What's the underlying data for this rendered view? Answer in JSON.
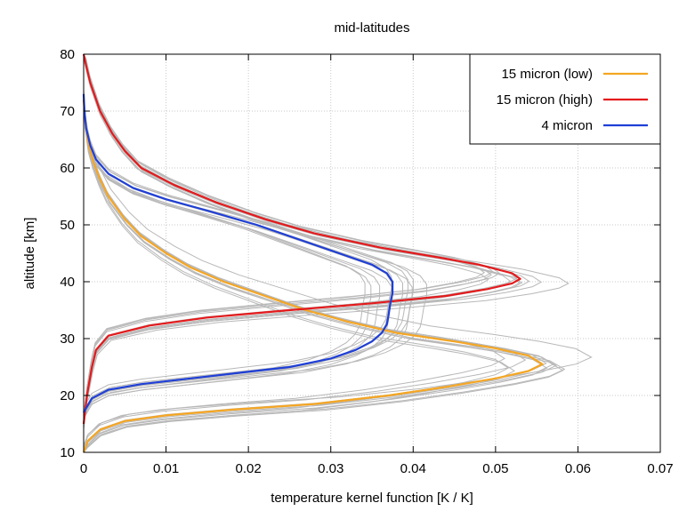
{
  "chart_data": {
    "type": "line",
    "title": "mid-latitudes",
    "xlabel": "temperature kernel function [K / K]",
    "ylabel": "altitude [km]",
    "xlim": [
      0,
      0.07
    ],
    "ylim": [
      10,
      80
    ],
    "xticks": [
      "0",
      "0.01",
      "0.02",
      "0.03",
      "0.04",
      "0.05",
      "0.06",
      "0.07"
    ],
    "yticks": [
      "10",
      "20",
      "30",
      "40",
      "50",
      "60",
      "70",
      "80"
    ],
    "grid": true,
    "legend_position": "top-right",
    "series": [
      {
        "name": "15 micron (low)",
        "color": "#f5a623",
        "points": [
          [
            0.0,
            10
          ],
          [
            0.0005,
            12
          ],
          [
            0.002,
            14
          ],
          [
            0.005,
            15.5
          ],
          [
            0.01,
            16.5
          ],
          [
            0.018,
            17.5
          ],
          [
            0.028,
            18.5
          ],
          [
            0.037,
            20
          ],
          [
            0.044,
            21.5
          ],
          [
            0.05,
            23
          ],
          [
            0.054,
            24.3
          ],
          [
            0.0557,
            25.5
          ],
          [
            0.054,
            27
          ],
          [
            0.05,
            28.3
          ],
          [
            0.045,
            29.5
          ],
          [
            0.038,
            31
          ],
          [
            0.032,
            33
          ],
          [
            0.027,
            35
          ],
          [
            0.022,
            37.5
          ],
          [
            0.017,
            40
          ],
          [
            0.013,
            42.5
          ],
          [
            0.01,
            45
          ],
          [
            0.007,
            48
          ],
          [
            0.005,
            51
          ],
          [
            0.003,
            55
          ],
          [
            0.002,
            58
          ],
          [
            0.0012,
            61
          ],
          [
            0.0006,
            64
          ],
          [
            0.0002,
            68
          ],
          [
            0.0,
            72
          ]
        ]
      },
      {
        "name": "15 micron (high)",
        "color": "#e41a1c",
        "points": [
          [
            0.0,
            15
          ],
          [
            0.0004,
            20
          ],
          [
            0.001,
            25
          ],
          [
            0.0015,
            28
          ],
          [
            0.003,
            30.5
          ],
          [
            0.008,
            32.3
          ],
          [
            0.015,
            33.7
          ],
          [
            0.025,
            35
          ],
          [
            0.035,
            36.2
          ],
          [
            0.044,
            37.5
          ],
          [
            0.049,
            38.7
          ],
          [
            0.052,
            39.7
          ],
          [
            0.053,
            40.5
          ],
          [
            0.052,
            41.5
          ],
          [
            0.048,
            43
          ],
          [
            0.043,
            44.3
          ],
          [
            0.036,
            46
          ],
          [
            0.028,
            48.5
          ],
          [
            0.022,
            51
          ],
          [
            0.016,
            54
          ],
          [
            0.011,
            57
          ],
          [
            0.007,
            60
          ],
          [
            0.005,
            63
          ],
          [
            0.0035,
            66
          ],
          [
            0.002,
            70
          ],
          [
            0.0008,
            75
          ],
          [
            0.0003,
            78
          ],
          [
            0.0,
            80
          ]
        ]
      },
      {
        "name": "4 micron",
        "color": "#1f3fd6",
        "points": [
          [
            0.0,
            17
          ],
          [
            0.001,
            19.5
          ],
          [
            0.003,
            21
          ],
          [
            0.007,
            22
          ],
          [
            0.013,
            23
          ],
          [
            0.019,
            24
          ],
          [
            0.025,
            25
          ],
          [
            0.03,
            26.5
          ],
          [
            0.033,
            28
          ],
          [
            0.035,
            29.5
          ],
          [
            0.0362,
            31
          ],
          [
            0.0368,
            32.5
          ],
          [
            0.037,
            34
          ],
          [
            0.0372,
            36
          ],
          [
            0.0375,
            38
          ],
          [
            0.0375,
            40
          ],
          [
            0.0368,
            41.5
          ],
          [
            0.035,
            43
          ],
          [
            0.031,
            45
          ],
          [
            0.026,
            47.5
          ],
          [
            0.021,
            50
          ],
          [
            0.015,
            52.5
          ],
          [
            0.01,
            54.5
          ],
          [
            0.006,
            56.5
          ],
          [
            0.003,
            59
          ],
          [
            0.0015,
            61.5
          ],
          [
            0.0008,
            64
          ],
          [
            0.0003,
            67
          ],
          [
            0.0001,
            70
          ],
          [
            0.0,
            73
          ]
        ]
      }
    ],
    "background_curves_color": "#b8b8b8",
    "background_curve_count": 36
  }
}
